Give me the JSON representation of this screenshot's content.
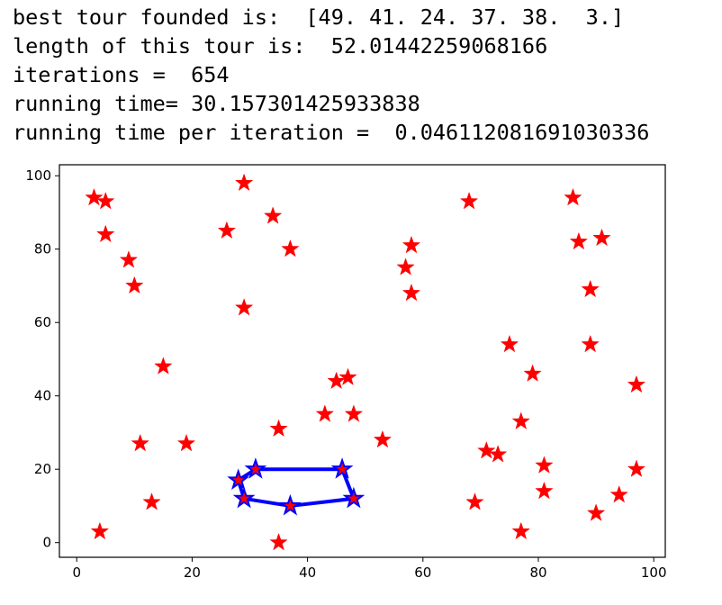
{
  "output_lines": [
    "best tour founded is:  [49. 41. 24. 37. 38.  3.]",
    "length of this tour is:  52.01442259068166",
    "iterations =  654",
    "running time= 30.157301425933838",
    "running time per iteration =  0.046112081691030336"
  ],
  "colors": {
    "points": "#ff0000",
    "tour": "#0000ff"
  },
  "chart_data": {
    "type": "scatter",
    "title": "",
    "xlabel": "",
    "ylabel": "",
    "xlim": [
      -3,
      102
    ],
    "ylim": [
      -4,
      103
    ],
    "xticks": [
      0,
      20,
      40,
      60,
      80,
      100
    ],
    "yticks": [
      0,
      20,
      40,
      60,
      80,
      100
    ],
    "marker": "star",
    "grid": false,
    "points": [
      [
        3,
        94
      ],
      [
        5,
        93
      ],
      [
        5,
        84
      ],
      [
        9,
        77
      ],
      [
        10,
        70
      ],
      [
        15,
        48
      ],
      [
        11,
        27
      ],
      [
        13,
        11
      ],
      [
        4,
        3
      ],
      [
        19,
        27
      ],
      [
        26,
        85
      ],
      [
        29,
        98
      ],
      [
        29,
        64
      ],
      [
        34,
        89
      ],
      [
        37,
        80
      ],
      [
        35,
        31
      ],
      [
        35,
        0
      ],
      [
        43,
        35
      ],
      [
        45,
        44
      ],
      [
        47,
        45
      ],
      [
        48,
        35
      ],
      [
        53,
        28
      ],
      [
        57,
        75
      ],
      [
        58,
        81
      ],
      [
        58,
        68
      ],
      [
        68,
        93
      ],
      [
        69,
        11
      ],
      [
        71,
        25
      ],
      [
        73,
        24
      ],
      [
        75,
        54
      ],
      [
        77,
        33
      ],
      [
        79,
        46
      ],
      [
        77,
        3
      ],
      [
        81,
        21
      ],
      [
        81,
        14
      ],
      [
        86,
        94
      ],
      [
        87,
        82
      ],
      [
        91,
        83
      ],
      [
        89,
        69
      ],
      [
        89,
        54
      ],
      [
        90,
        8
      ],
      [
        94,
        13
      ],
      [
        97,
        43
      ],
      [
        97,
        20
      ],
      [
        28,
        17
      ],
      [
        31,
        20
      ],
      [
        46,
        20
      ],
      [
        48,
        12
      ],
      [
        37,
        10
      ],
      [
        29,
        12
      ]
    ],
    "tour": [
      [
        28,
        17
      ],
      [
        31,
        20
      ],
      [
        46,
        20
      ],
      [
        48,
        12
      ],
      [
        37,
        10
      ],
      [
        29,
        12
      ],
      [
        28,
        17
      ]
    ]
  }
}
